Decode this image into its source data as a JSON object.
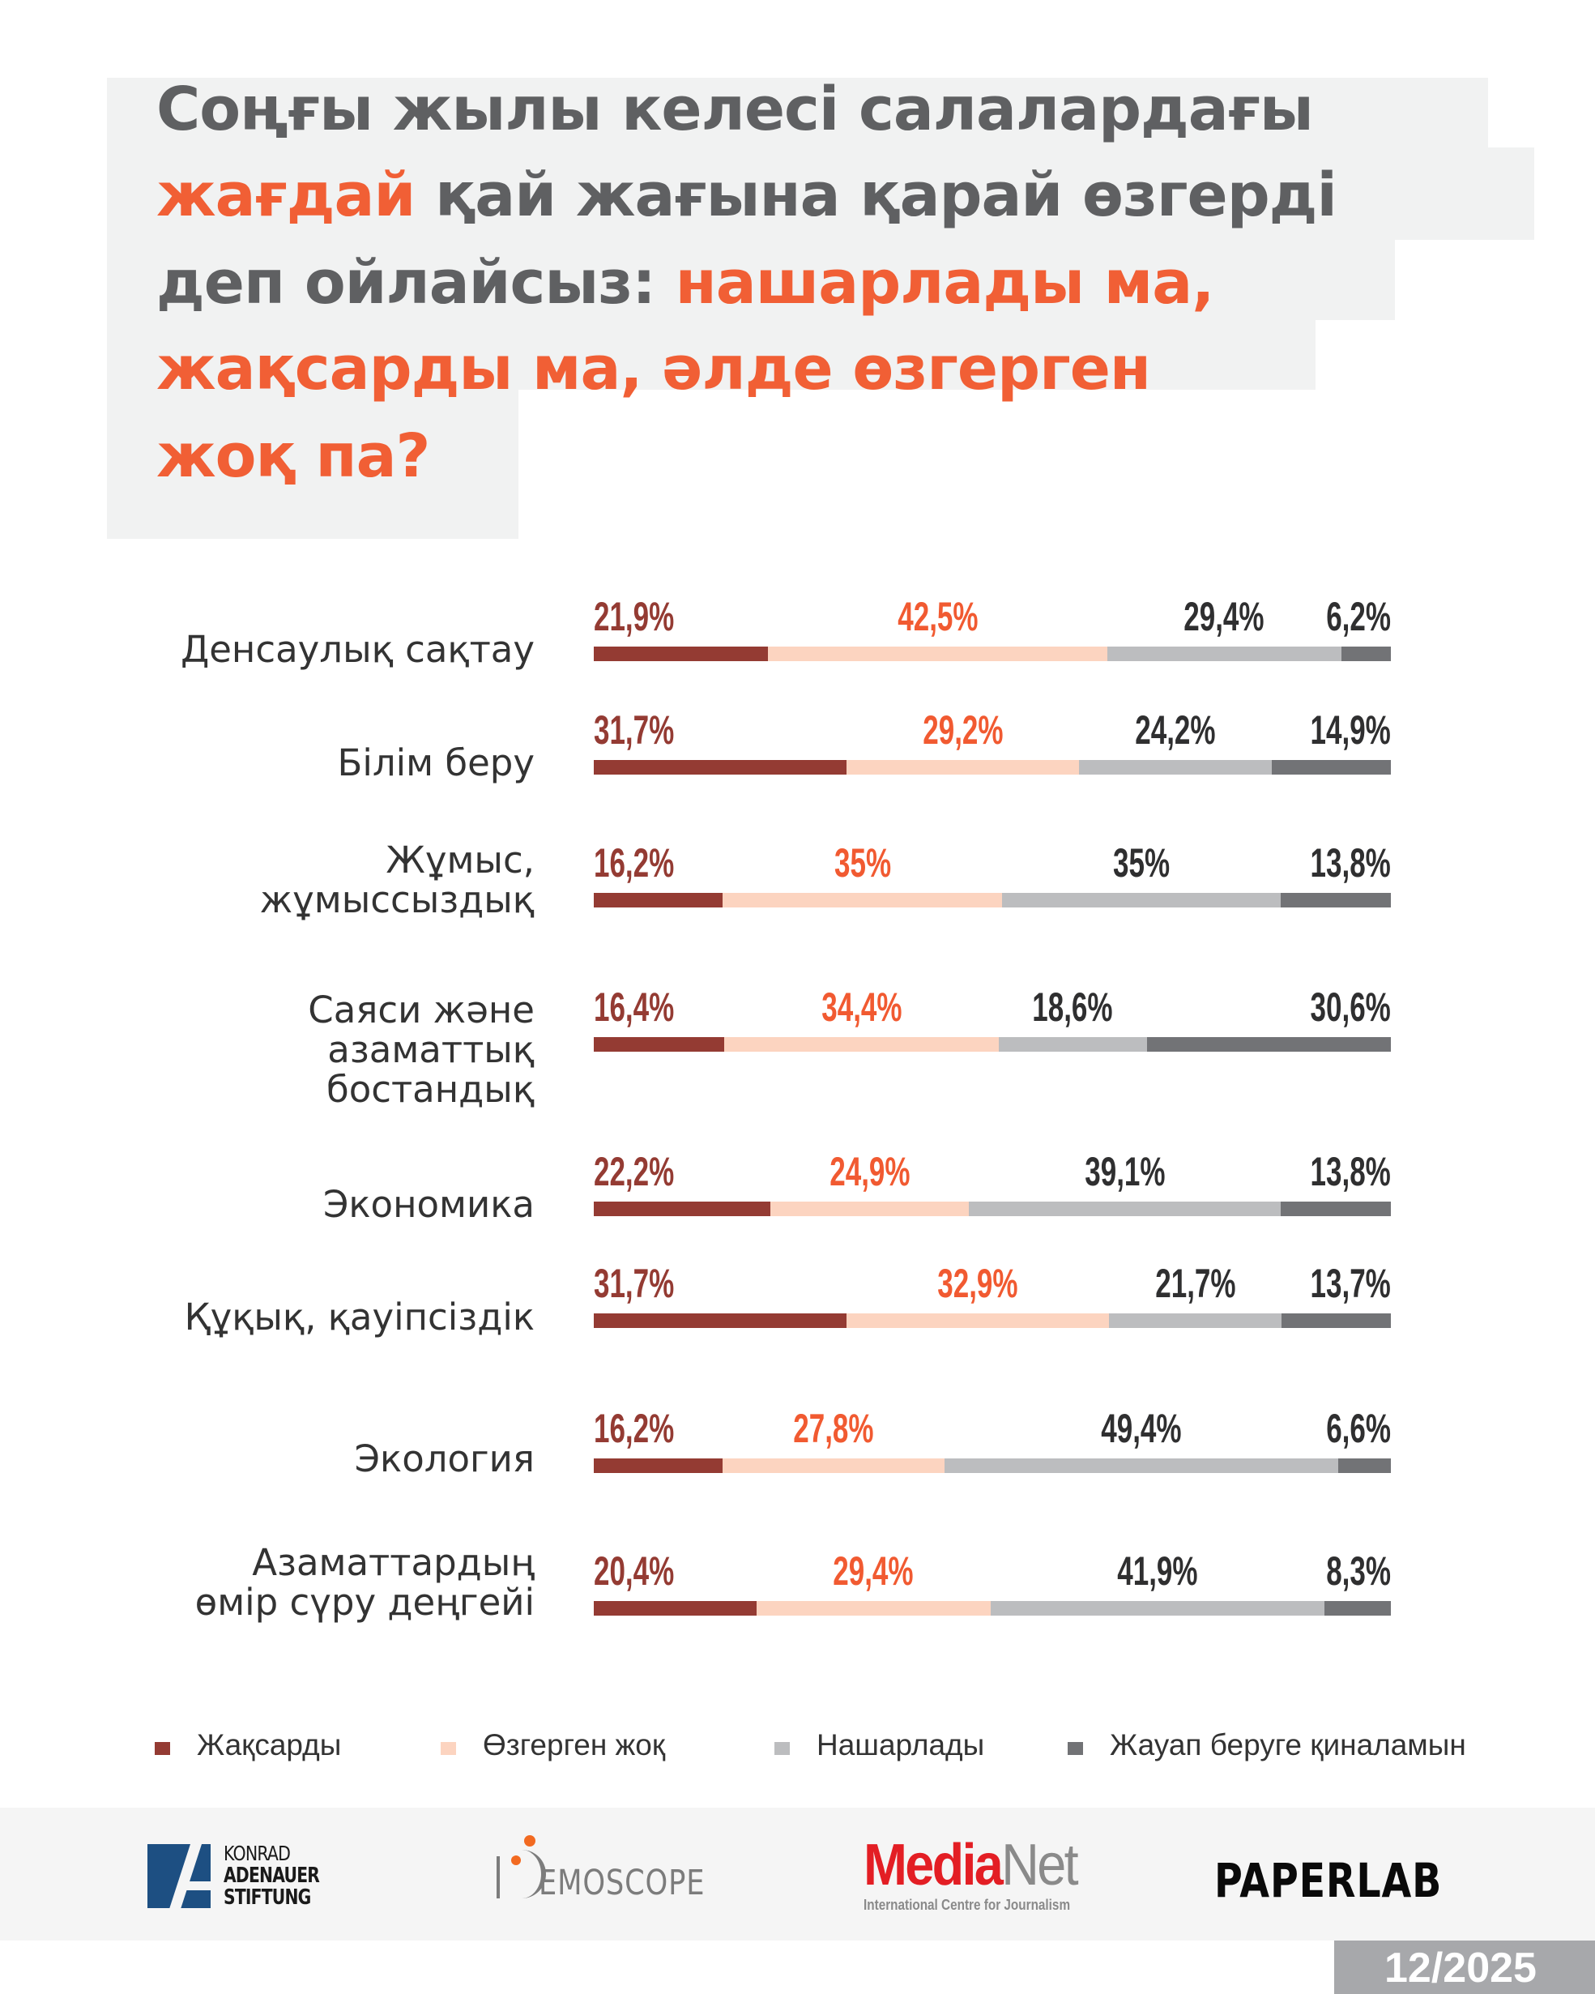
{
  "title": {
    "lines": [
      [
        {
          "text": "Соңғы жылы келесі салалардағы",
          "highlight": false
        }
      ],
      [
        {
          "text": "жағдай",
          "highlight": true
        },
        {
          "text": " қай жағына қарай өзгерді",
          "highlight": false
        }
      ],
      [
        {
          "text": "деп ойлайсыз: ",
          "highlight": false
        },
        {
          "text": "нашарлады ма,",
          "highlight": true
        }
      ],
      [
        {
          "text": "жақсарды ма, әлде өзгерген",
          "highlight": true
        }
      ],
      [
        {
          "text": "жоқ па?",
          "highlight": true
        }
      ]
    ]
  },
  "colors": {
    "improved": "#943b33",
    "unchanged": "#fcd4c0",
    "worsened": "#bcbdbf",
    "hard_to_answer": "#727376",
    "value_improved": "#943b33",
    "value_unchanged": "#f15a31",
    "value_other": "#2f2f30",
    "title_gray": "#5f6062",
    "title_orange": "#f15f35"
  },
  "chart_data": {
    "type": "bar",
    "orientation": "horizontal",
    "stacked": true,
    "title": "Соңғы жылы келесі салалардағы жағдай қай жағына қарай өзгерді деп ойлайсыз: нашарлады ма, жақсарды ма, әлде өзгерген жоқ па?",
    "xlim": [
      0,
      100
    ],
    "unit": "%",
    "legend_position": "bottom",
    "categories": [
      "Денсаулық сақтау",
      "Білім беру",
      "Жұмыс, жұмыссыздық",
      "Саяси және азаматтық бостандық",
      "Экономика",
      "Құқық, қауіпсіздік",
      "Экология",
      "Азаматтардың өмір сүру деңгейі"
    ],
    "category_lines": [
      [
        "Денсаулық сақтау"
      ],
      [
        "Білім беру"
      ],
      [
        "Жұмыс,",
        "жұмыссыздық"
      ],
      [
        "Саяси және",
        "азаматтық",
        "бостандық"
      ],
      [
        "Экономика"
      ],
      [
        "Құқық, қауіпсіздік"
      ],
      [
        "Экология"
      ],
      [
        "Азаматтардың",
        "өмір сүру деңгейі"
      ]
    ],
    "series": [
      {
        "name": "Жақсарды",
        "values": [
          21.9,
          31.7,
          16.2,
          16.4,
          22.2,
          31.7,
          16.2,
          20.4
        ],
        "labels": [
          "21,9%",
          "31,7%",
          "16,2%",
          "16,4%",
          "22,2%",
          "31,7%",
          "16,2%",
          "20,4%"
        ]
      },
      {
        "name": "Өзгерген жоқ",
        "values": [
          42.5,
          29.2,
          35,
          34.4,
          24.9,
          32.9,
          27.8,
          29.4
        ],
        "labels": [
          "42,5%",
          "29,2%",
          "35%",
          "34,4%",
          "24,9%",
          "32,9%",
          "27,8%",
          "29,4%"
        ]
      },
      {
        "name": "Нашарлады",
        "values": [
          29.4,
          24.2,
          35,
          18.6,
          39.1,
          21.7,
          49.4,
          41.9
        ],
        "labels": [
          "29,4%",
          "24,2%",
          "35%",
          "18,6%",
          "39,1%",
          "21,7%",
          "49,4%",
          "41,9%"
        ]
      },
      {
        "name": "Жауап беруге қиналамын",
        "values": [
          6.2,
          14.9,
          13.8,
          30.6,
          13.8,
          13.7,
          6.6,
          8.3
        ],
        "labels": [
          "6,2%",
          "14,9%",
          "13,8%",
          "30,6%",
          "13,8%",
          "13,7%",
          "6,6%",
          "8,3%"
        ]
      }
    ]
  },
  "legend": [
    {
      "label": "Жақсарды"
    },
    {
      "label": "Өзгерген жоқ"
    },
    {
      "label": "Нашарлады"
    },
    {
      "label": "Жауап беруге қиналамын"
    }
  ],
  "footer": {
    "kas": {
      "line1": "KONRAD",
      "line2": "ADENAUER",
      "line3": "STIFTUNG"
    },
    "demoscope": {
      "text": "EMOSCOPE",
      "initial": "D"
    },
    "medianet": {
      "media": "Media",
      "net": "Net",
      "subtitle": "International Centre for Journalism"
    },
    "paperlab": {
      "text": "PAPERLAB"
    },
    "date": "12/2025"
  }
}
